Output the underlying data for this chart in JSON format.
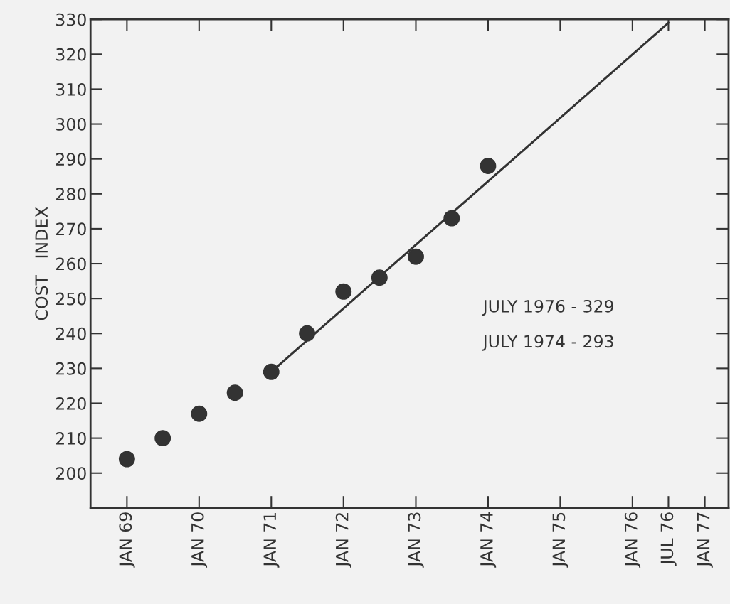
{
  "chart_data": {
    "type": "scatter",
    "ylabel": "COST   INDEX",
    "series": [
      {
        "color": "#333333",
        "x": [
          "1969-01",
          "1969-07",
          "1970-01",
          "1970-07",
          "1971-01",
          "1971-07",
          "1972-01",
          "1972-07",
          "1973-01",
          "1973-07",
          "1974-01"
        ],
        "values": [
          204,
          210,
          217,
          223,
          229,
          240,
          252,
          256,
          262,
          273,
          288
        ]
      },
      {
        "type": "line",
        "marker": "none",
        "color": "#333333",
        "x": [
          "1971-01",
          "1976-07"
        ],
        "values": [
          229,
          329
        ]
      }
    ],
    "marker": "circle",
    "xlim": [
      "1968-07",
      "1977-05"
    ],
    "xticks": [
      {
        "value": "1969-01",
        "label": "JAN 69"
      },
      {
        "value": "1970-01",
        "label": "JAN 70"
      },
      {
        "value": "1971-01",
        "label": "JAN 71"
      },
      {
        "value": "1972-01",
        "label": "JAN 72"
      },
      {
        "value": "1973-01",
        "label": "JAN 73"
      },
      {
        "value": "1974-01",
        "label": "JAN 74"
      },
      {
        "value": "1975-01",
        "label": "JAN 75"
      },
      {
        "value": "1976-01",
        "label": "JAN 76"
      },
      {
        "value": "1976-07",
        "label": "JUL 76"
      },
      {
        "value": "1977-01",
        "label": "JAN 77"
      }
    ],
    "ylim": [
      190,
      330
    ],
    "yticks": [
      200,
      210,
      220,
      230,
      240,
      250,
      260,
      270,
      280,
      290,
      300,
      310,
      320,
      330
    ],
    "grid": false,
    "annotations": [
      "JULY 1976 - 329",
      "JULY 1974 - 293"
    ]
  }
}
